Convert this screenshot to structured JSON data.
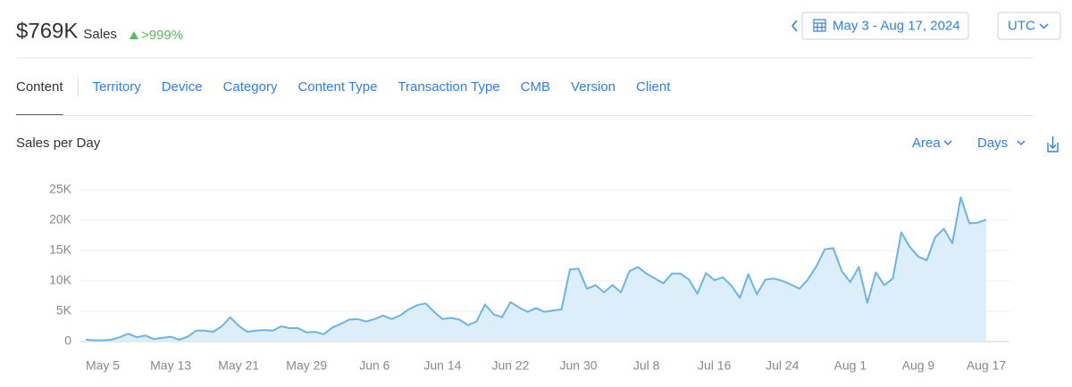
{
  "header": {
    "total": "$769K",
    "metric": "Sales",
    "change": ">999%",
    "date_range": "May 3 - Aug 17, 2024",
    "timezone": "UTC"
  },
  "tabs": [
    "Content",
    "Territory",
    "Device",
    "Category",
    "Content Type",
    "Transaction Type",
    "CMB",
    "Version",
    "Client"
  ],
  "controls": {
    "chart_style": "Area",
    "granularity": "Days"
  },
  "chart_data": {
    "type": "area",
    "title": "Sales per Day",
    "color": "#6cb4e6",
    "fill": "#dbeefa",
    "grid": true,
    "categories": [
      null,
      null,
      "May 5",
      null,
      null,
      null,
      null,
      null,
      null,
      null,
      "May 13",
      null,
      null,
      null,
      null,
      null,
      null,
      null,
      "May 21",
      null,
      null,
      null,
      null,
      null,
      null,
      null,
      "May 29",
      null,
      null,
      null,
      null,
      null,
      null,
      null,
      "Jun 6",
      null,
      null,
      null,
      null,
      null,
      null,
      null,
      "Jun 14",
      null,
      null,
      null,
      null,
      null,
      null,
      null,
      "Jun 22",
      null,
      null,
      null,
      null,
      null,
      null,
      null,
      "Jun 30",
      null,
      null,
      null,
      null,
      null,
      null,
      null,
      "Jul 8",
      null,
      null,
      null,
      null,
      null,
      null,
      null,
      "Jul 16",
      null,
      null,
      null,
      null,
      null,
      null,
      null,
      "Jul 24",
      null,
      null,
      null,
      null,
      null,
      null,
      null,
      "Aug 1",
      null,
      null,
      null,
      null,
      null,
      null,
      null,
      "Aug 9",
      null,
      null,
      null,
      null,
      null,
      null,
      null,
      "Aug 17"
    ],
    "values": [
      300,
      200,
      200,
      300,
      700,
      1300,
      700,
      1000,
      400,
      600,
      800,
      300,
      800,
      1800,
      1800,
      1600,
      2500,
      4000,
      2600,
      1600,
      1800,
      1900,
      1800,
      2500,
      2200,
      2200,
      1500,
      1600,
      1200,
      2300,
      2900,
      3600,
      3700,
      3300,
      3700,
      4300,
      3700,
      4300,
      5300,
      6000,
      6300,
      4900,
      3700,
      3900,
      3600,
      2700,
      3300,
      6100,
      4500,
      4000,
      6500,
      5600,
      4900,
      5500,
      4900,
      5100,
      5300,
      11900,
      12000,
      8700,
      9300,
      8100,
      9300,
      8100,
      11600,
      12300,
      11200,
      10400,
      9600,
      11200,
      11200,
      10200,
      7900,
      11300,
      10100,
      10600,
      9200,
      7200,
      11100,
      7800,
      10200,
      10400,
      10000,
      9400,
      8700,
      10200,
      12400,
      15200,
      15400,
      11600,
      9800,
      12300,
      6400,
      11400,
      9300,
      10400,
      18000,
      15600,
      14000,
      13400,
      17200,
      18600,
      16200,
      23800,
      19500,
      19600,
      20100
    ],
    "ylim": [
      0,
      25000
    ],
    "yticks": [
      0,
      {
        "value": 5000,
        "label": "5K"
      },
      {
        "value": 10000,
        "label": "10K"
      },
      {
        "value": 15000,
        "label": "15K"
      },
      {
        "value": 20000,
        "label": "20K"
      },
      {
        "value": 25000,
        "label": "25K"
      }
    ]
  }
}
